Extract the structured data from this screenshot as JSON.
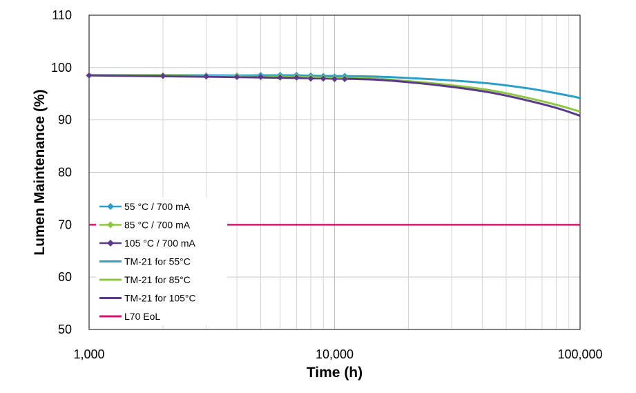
{
  "chart_data": {
    "type": "line",
    "xscale": "log",
    "xlabel": "Time (h)",
    "ylabel": "Lumen Maintenance (%)",
    "xlim": [
      1000,
      100000
    ],
    "ylim": [
      50,
      110
    ],
    "xticks": [
      1000,
      10000,
      100000
    ],
    "xtick_labels": [
      "1,000",
      "10,000",
      "100,000"
    ],
    "yticks": [
      50,
      60,
      70,
      80,
      90,
      100,
      110
    ],
    "ytick_labels": [
      "50",
      "60",
      "70",
      "80",
      "90",
      "100",
      "110"
    ],
    "grid": true,
    "legend_position": "lower-left",
    "series": [
      {
        "name": "55 °C / 700 mA",
        "kind": "measured",
        "color": "#2aa0c8",
        "marker": "diamond",
        "x": [
          1000,
          2000,
          3000,
          4000,
          5000,
          6000,
          7000,
          8000,
          9000,
          10000,
          11000
        ],
        "y": [
          98.5,
          98.5,
          98.5,
          98.5,
          98.6,
          98.6,
          98.6,
          98.5,
          98.4,
          98.3,
          98.4
        ]
      },
      {
        "name": "85 °C / 700 mA",
        "kind": "measured",
        "color": "#8dc63f",
        "marker": "diamond",
        "x": [
          1000,
          2000,
          3000,
          4000,
          5000,
          6000,
          7000,
          8000,
          9000,
          10000,
          11000
        ],
        "y": [
          98.5,
          98.5,
          98.4,
          98.4,
          98.3,
          98.3,
          98.3,
          98.2,
          98.1,
          98.0,
          98.0
        ]
      },
      {
        "name": "105 °C / 700 mA",
        "kind": "measured",
        "color": "#5b3a8e",
        "marker": "diamond",
        "x": [
          1000,
          2000,
          3000,
          4000,
          5000,
          6000,
          7000,
          8000,
          9000,
          10000,
          11000
        ],
        "y": [
          98.5,
          98.4,
          98.3,
          98.2,
          98.2,
          98.1,
          98.1,
          97.9,
          97.9,
          97.8,
          97.8
        ]
      },
      {
        "name": "TM-21 for 55°C",
        "kind": "fit",
        "color": "#2aa0c8",
        "x": [
          1000,
          10000,
          20000,
          40000,
          60000,
          80000,
          100000
        ],
        "y": [
          98.6,
          98.4,
          98.0,
          97.1,
          96.1,
          95.1,
          94.2
        ]
      },
      {
        "name": "TM-21 for 85°C",
        "kind": "fit",
        "color": "#8dc63f",
        "x": [
          1000,
          10000,
          20000,
          40000,
          60000,
          80000,
          100000
        ],
        "y": [
          98.6,
          98.1,
          97.4,
          95.9,
          94.3,
          92.9,
          91.6
        ]
      },
      {
        "name": "TM-21 for 105°C",
        "kind": "fit",
        "color": "#5b3a8e",
        "x": [
          1000,
          10000,
          20000,
          40000,
          60000,
          80000,
          100000
        ],
        "y": [
          98.5,
          97.9,
          97.2,
          95.5,
          93.8,
          92.3,
          90.8
        ]
      },
      {
        "name": "L70 EoL",
        "kind": "threshold",
        "color": "#d6166e",
        "x": [
          1000,
          100000
        ],
        "y": [
          70,
          70
        ]
      }
    ]
  }
}
